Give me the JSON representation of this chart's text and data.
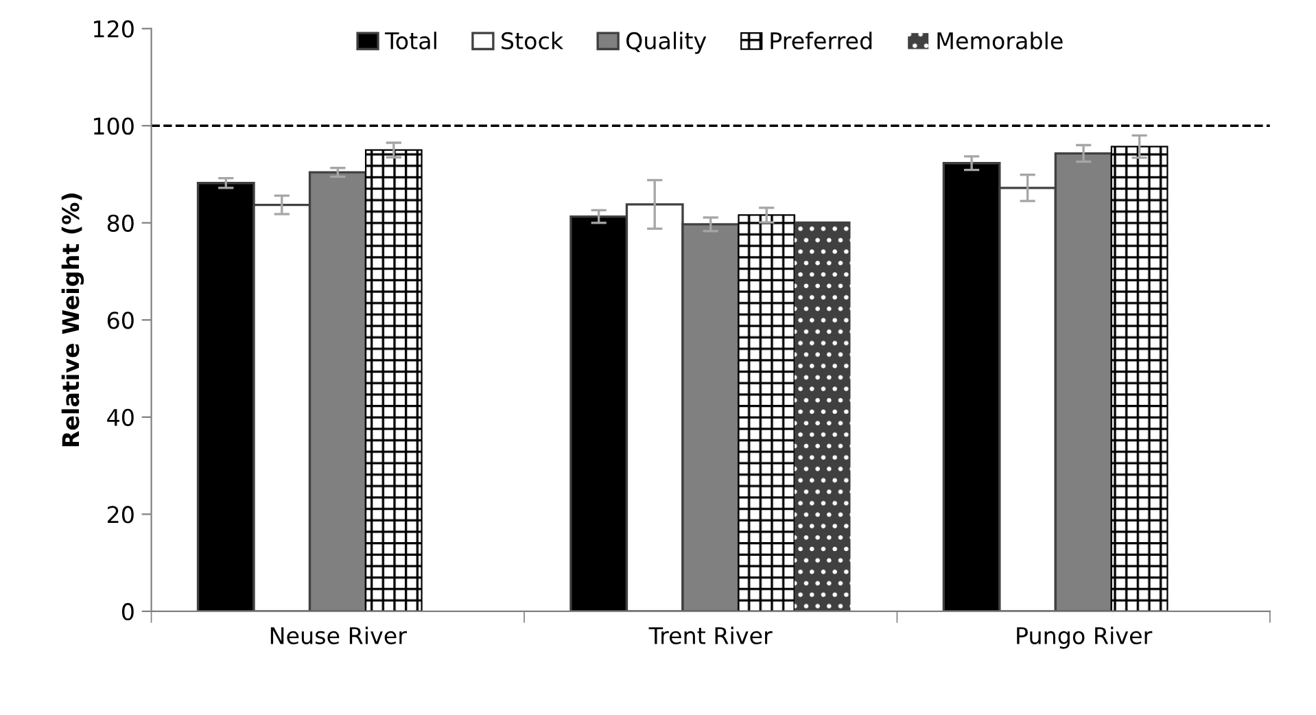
{
  "chart_data": {
    "type": "bar",
    "ylabel": "Relative Weight (%)",
    "categories": [
      "Neuse River",
      "Trent River",
      "Pungo River"
    ],
    "series": [
      {
        "name": "Total",
        "color": "#000000",
        "values": [
          88.2,
          81.3,
          92.3
        ],
        "errors": [
          1.0,
          1.3,
          1.4
        ]
      },
      {
        "name": "Stock",
        "color": "#ffffff",
        "values": [
          83.7,
          83.8,
          87.2
        ],
        "errors": [
          1.9,
          5.0,
          2.7
        ]
      },
      {
        "name": "Quality",
        "color": "#808080",
        "values": [
          90.4,
          79.7,
          94.3
        ],
        "errors": [
          0.9,
          1.4,
          1.7
        ]
      },
      {
        "name": "Preferred",
        "color": "#000000",
        "values": [
          95.0,
          81.6,
          95.7
        ],
        "errors": [
          1.5,
          1.5,
          2.3
        ]
      },
      {
        "name": "Memorable",
        "color": "#404040",
        "values": [
          null,
          80.3,
          null
        ],
        "errors": [
          null,
          null,
          null
        ]
      }
    ],
    "ylim": [
      0,
      120
    ],
    "yticks": [
      0,
      20,
      40,
      60,
      80,
      100,
      120
    ],
    "ref_lines": [
      {
        "axis": "y",
        "value": 100,
        "color": "#000000",
        "line_style": "dashed"
      }
    ],
    "grid": false,
    "legend": "top"
  }
}
